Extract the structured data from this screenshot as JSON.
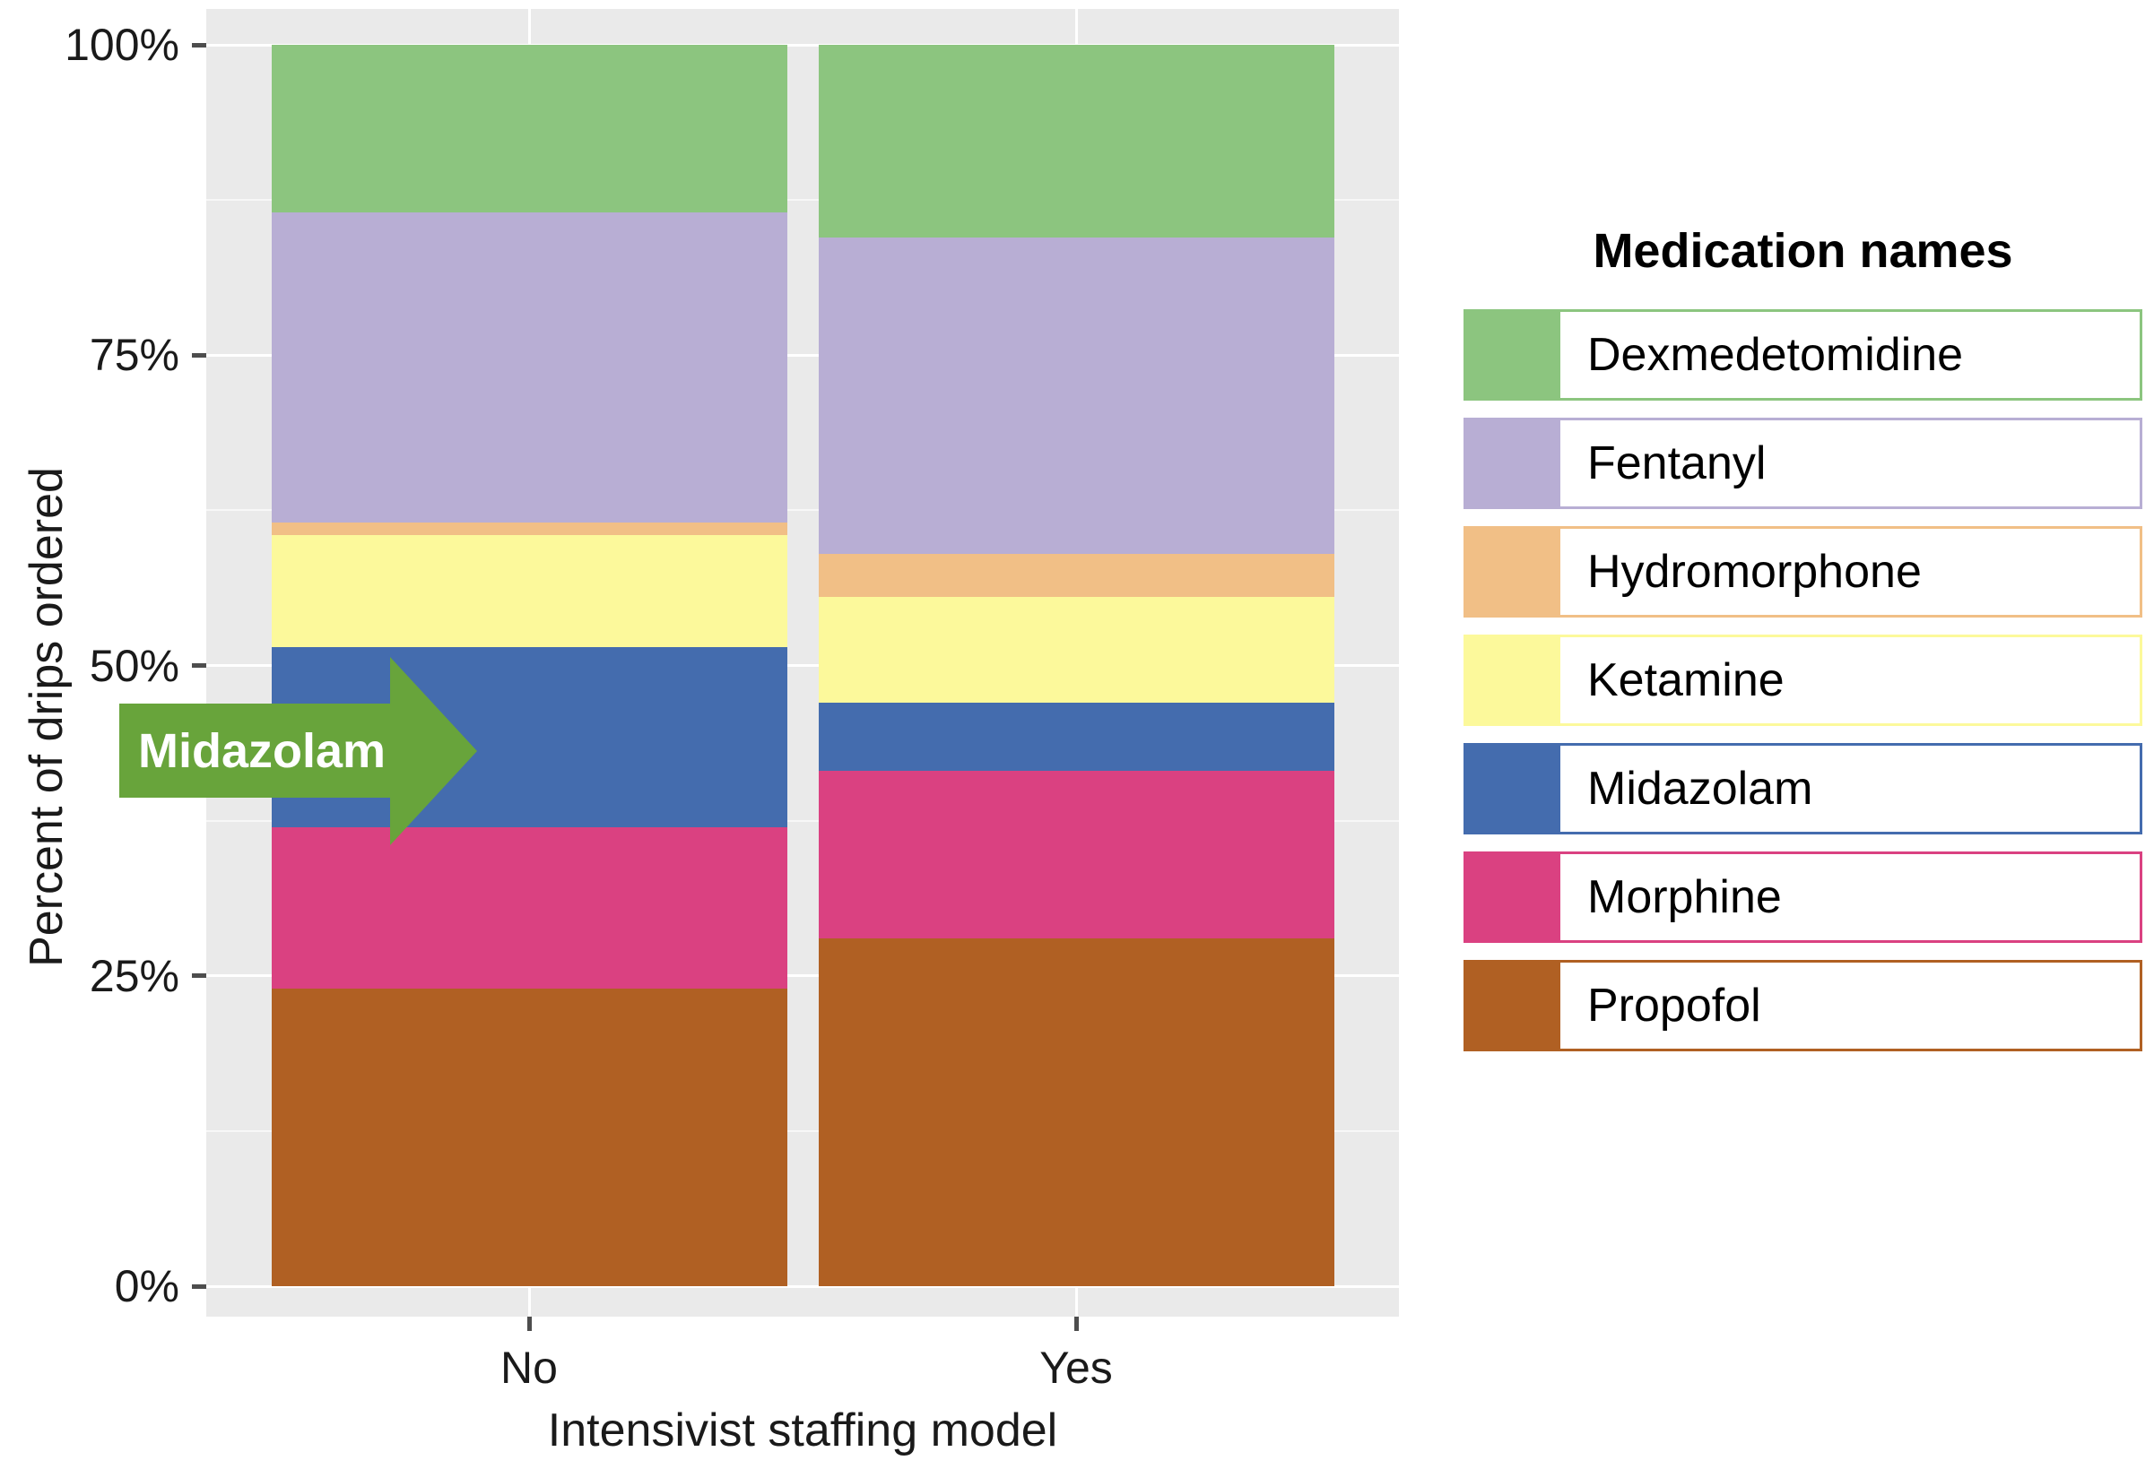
{
  "figure": {
    "y_axis": {
      "title": "Percent of drips ordered",
      "tick_labels": [
        "100%",
        "75%",
        "50%",
        "25%",
        "0%"
      ],
      "tick_values": [
        100,
        75,
        50,
        25,
        0
      ]
    },
    "x_axis": {
      "title": "Intensivist staffing model",
      "categories": [
        "No",
        "Yes"
      ]
    },
    "legend": {
      "title": "Medication names"
    },
    "annotation": {
      "text": "Midazolam"
    }
  },
  "colors": {
    "panel_background": "#EAEAEA",
    "gridline": "#FFFFFF",
    "arrow": "#68A43B",
    "axis_text": "#1A1A1A"
  },
  "chart_data": {
    "type": "bar",
    "stacked": true,
    "percent_scale": true,
    "title": "",
    "xlabel": "Intensivist staffing model",
    "ylabel": "Percent of drips ordered",
    "ylim": [
      0,
      100
    ],
    "grid": true,
    "legend_position": "right",
    "legend_title": "Medication names",
    "categories": [
      "No",
      "Yes"
    ],
    "series": [
      {
        "name": "Dexmedetomidine",
        "color": "#8CC57F",
        "values": [
          13.5,
          15.5
        ]
      },
      {
        "name": "Fentanyl",
        "color": "#B8AED4",
        "values": [
          25.0,
          25.5
        ]
      },
      {
        "name": "Hydromorphone",
        "color": "#F1BF86",
        "values": [
          1.0,
          3.5
        ]
      },
      {
        "name": "Ketamine",
        "color": "#FCF99B",
        "values": [
          9.0,
          8.5
        ]
      },
      {
        "name": "Midazolam",
        "color": "#446CAE",
        "values": [
          14.5,
          5.5
        ]
      },
      {
        "name": "Morphine",
        "color": "#DA4181",
        "values": [
          13.0,
          13.5
        ]
      },
      {
        "name": "Propofol",
        "color": "#B06023",
        "values": [
          24.0,
          28.0
        ]
      }
    ],
    "annotations": [
      {
        "text": "Midazolam",
        "target_series": "Midazolam",
        "target_category": "No",
        "shape": "right-arrow"
      }
    ]
  }
}
